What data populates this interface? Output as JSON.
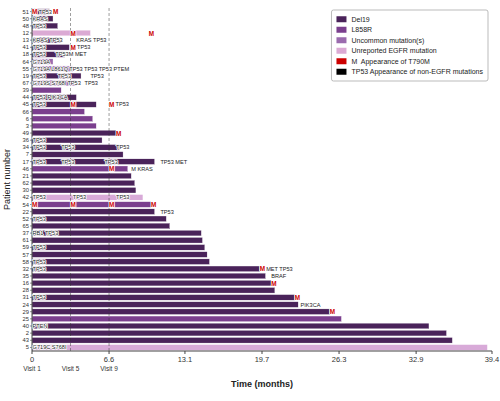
{
  "chart_data": {
    "type": "bar",
    "orientation": "horizontal",
    "xlabel": "Time (months)",
    "ylabel": "Patient number",
    "categories": [
      "51",
      "50",
      "48",
      "12",
      "13",
      "41",
      "18",
      "64",
      "55",
      "19",
      "67",
      "39",
      "44",
      "45",
      "66",
      "6",
      "3",
      "49",
      "36",
      "34",
      "7",
      "17",
      "46",
      "21",
      "62",
      "30",
      "42",
      "54",
      "22",
      "52",
      "65",
      "37",
      "61",
      "59",
      "57",
      "58",
      "32",
      "35",
      "16",
      "28",
      "31",
      "24",
      "29",
      "25",
      "40",
      "2",
      "43",
      "5"
    ],
    "values": [
      1.5,
      1.8,
      2.2,
      5.0,
      2.5,
      3.2,
      2.8,
      1.8,
      3.5,
      4.2,
      3.8,
      2.5,
      3.8,
      5.5,
      4.5,
      5.2,
      5.5,
      7.2,
      6.0,
      7.5,
      7.8,
      10.5,
      8.2,
      8.5,
      8.8,
      8.9,
      9.5,
      10.2,
      10.5,
      11.5,
      11.8,
      14.5,
      14.6,
      14.8,
      15.0,
      15.2,
      19.5,
      20.0,
      20.5,
      20.8,
      22.5,
      22.8,
      25.5,
      26.5,
      34.0,
      35.5,
      36.0,
      39.0
    ],
    "colors": [
      "#4a235a",
      "#4a235a",
      "#4a235a",
      "#dbaad4",
      "#4a235a",
      "#4a235a",
      "#4a235a",
      "#9b6bae",
      "#9b6bae",
      "#4a235a",
      "#9b6bae",
      "#7b3f8e",
      "#4a235a",
      "#4a235a",
      "#7b3f8e",
      "#7b3f8e",
      "#7b3f8e",
      "#4a235a",
      "#4a235a",
      "#4a235a",
      "#4a235a",
      "#4a235a",
      "#7b3f8e",
      "#4a235a",
      "#4a235a",
      "#4a235a",
      "#d8aad8",
      "#7b3f8e",
      "#4a235a",
      "#4a235a",
      "#4a235a",
      "#4a235a",
      "#4a235a",
      "#4a235a",
      "#4a235a",
      "#4a235a",
      "#4a235a",
      "#4a235a",
      "#4a235a",
      "#4a235a",
      "#4a235a",
      "#4a235a",
      "#4a235a",
      "#7b3f8e",
      "#4a235a",
      "#4a235a",
      "#4a235a",
      "#d8aad8"
    ],
    "xlim": [
      0,
      39.4
    ],
    "xticks": [
      0,
      6.6,
      13.1,
      19.7,
      26.3,
      32.9,
      39.4
    ],
    "legend": "upper right",
    "legend_entries": [
      {
        "name": "Del19",
        "color": "#4a235a"
      },
      {
        "name": "L858R",
        "color": "#7b3f8e"
      },
      {
        "name": "Uncommon mutation(s)",
        "color": "#9b6bae"
      },
      {
        "name": "Unreported EGFR mutation",
        "color": "#dbaad4"
      },
      {
        "name": "M  Appearance of T790M",
        "color": "#cc0000"
      },
      {
        "name": "TP53 Appearance of non-EGFR mutations",
        "color": "#000000"
      }
    ],
    "visit_lines": [
      {
        "x": 0,
        "label": "Visit 1"
      },
      {
        "x": 3.3,
        "label": "Visit 5"
      },
      {
        "x": 6.6,
        "label": "Visit 9"
      }
    ],
    "annotations": [
      {
        "category": "51",
        "x": 0.05,
        "text": "TP53"
      },
      {
        "category": "51",
        "x": 0.0,
        "text": "M",
        "color": "#cc0000"
      },
      {
        "category": "51",
        "x": 1.5,
        "text": "M",
        "color": "#cc0000"
      },
      {
        "category": "50",
        "x": 0.05,
        "text": "KRAS"
      },
      {
        "category": "48",
        "x": 0.05,
        "text": "TP53"
      },
      {
        "category": "12",
        "x": 3.3,
        "text": "M",
        "color": "#cc0000"
      },
      {
        "category": "12",
        "x": 10.0,
        "text": "M",
        "color": "#cc0000"
      },
      {
        "category": "13",
        "x": 0.05,
        "text": "KRAS TP53"
      },
      {
        "category": "13",
        "x": 3.8,
        "text": "KRAS TP53"
      },
      {
        "category": "41",
        "x": 0.05,
        "text": "TP53"
      },
      {
        "category": "41",
        "x": 3.3,
        "text": "M",
        "color": "#cc0000"
      },
      {
        "category": "41",
        "x": 3.6,
        "text": "TP53"
      },
      {
        "category": "18",
        "x": 0.05,
        "text": "TP53"
      },
      {
        "category": "18",
        "x": 2.0,
        "text": "TP53M MET"
      },
      {
        "category": "64",
        "x": 0.05,
        "text": "G719A"
      },
      {
        "category": "55",
        "x": 0.05,
        "text": "G719A L861Q"
      },
      {
        "category": "55",
        "x": 1.8,
        "text": "TP53 TP53"
      },
      {
        "category": "55",
        "x": 3.8,
        "text": "TP53 PTEM"
      },
      {
        "category": "19",
        "x": 0.05,
        "text": "TP53"
      },
      {
        "category": "19",
        "x": 2.2,
        "text": "TP53"
      },
      {
        "category": "19",
        "x": 5.0,
        "text": "TP53"
      },
      {
        "category": "67",
        "x": 0.05,
        "text": "G719S S768I"
      },
      {
        "category": "67",
        "x": 2.5,
        "text": "TP53"
      },
      {
        "category": "67",
        "x": 4.5,
        "text": "TP53"
      },
      {
        "category": "44",
        "x": 0.05,
        "text": "TP53 PIK3CA"
      },
      {
        "category": "45",
        "x": 0.05,
        "text": "TP53"
      },
      {
        "category": "45",
        "x": 3.3,
        "text": "M",
        "color": "#cc0000"
      },
      {
        "category": "45",
        "x": 6.6,
        "text": "M",
        "color": "#cc0000"
      },
      {
        "category": "45",
        "x": 7.0,
        "text": "TP53"
      },
      {
        "category": "49",
        "x": 7.2,
        "text": "M",
        "color": "#cc0000"
      },
      {
        "category": "36",
        "x": 0.05,
        "text": "TP53"
      },
      {
        "category": "34",
        "x": 0.05,
        "text": "TP53"
      },
      {
        "category": "34",
        "x": 2.5,
        "text": "TP53"
      },
      {
        "category": "34",
        "x": 7.2,
        "text": "TP53"
      },
      {
        "category": "17",
        "x": 0.05,
        "text": "TP53"
      },
      {
        "category": "17",
        "x": 2.5,
        "text": "TP53"
      },
      {
        "category": "17",
        "x": 6.2,
        "text": "TP53"
      },
      {
        "category": "17",
        "x": 11.0,
        "text": "TP53 MET"
      },
      {
        "category": "46",
        "x": 6.6,
        "text": "M",
        "color": "#cc0000"
      },
      {
        "category": "46",
        "x": 8.5,
        "text": "M KRAS"
      },
      {
        "category": "42",
        "x": 0.05,
        "text": "TP53"
      },
      {
        "category": "42",
        "x": 3.5,
        "text": "TP53"
      },
      {
        "category": "42",
        "x": 7.2,
        "text": "TP53"
      },
      {
        "category": "54",
        "x": 0.0,
        "text": "M",
        "color": "#cc0000"
      },
      {
        "category": "54",
        "x": 3.3,
        "text": "M",
        "color": "#cc0000"
      },
      {
        "category": "54",
        "x": 6.6,
        "text": "M",
        "color": "#cc0000"
      },
      {
        "category": "54",
        "x": 10.2,
        "text": "M",
        "color": "#cc0000"
      },
      {
        "category": "22",
        "x": 11.0,
        "text": "TP53"
      },
      {
        "category": "52",
        "x": 0.05,
        "text": "TP53"
      },
      {
        "category": "37",
        "x": 0.05,
        "text": "RB1 TP53"
      },
      {
        "category": "59",
        "x": 0.05,
        "text": "TP53"
      },
      {
        "category": "58",
        "x": 0.05,
        "text": "TP53"
      },
      {
        "category": "32",
        "x": 0.05,
        "text": "TP53"
      },
      {
        "category": "32",
        "x": 19.5,
        "text": "M",
        "color": "#cc0000"
      },
      {
        "category": "32",
        "x": 20.0,
        "text": "MET TP53"
      },
      {
        "category": "35",
        "x": 20.5,
        "text": "BRAF"
      },
      {
        "category": "16",
        "x": 20.5,
        "text": "M",
        "color": "#cc0000"
      },
      {
        "category": "31",
        "x": 0.05,
        "text": "TP53"
      },
      {
        "category": "31",
        "x": 22.5,
        "text": "M",
        "color": "#cc0000"
      },
      {
        "category": "24",
        "x": 23.0,
        "text": "PIK3CA"
      },
      {
        "category": "29",
        "x": 25.5,
        "text": "M",
        "color": "#cc0000"
      },
      {
        "category": "40",
        "x": 0.05,
        "text": "PTEN"
      },
      {
        "category": "5",
        "x": 0.05,
        "text": "G719C S768I"
      }
    ]
  }
}
